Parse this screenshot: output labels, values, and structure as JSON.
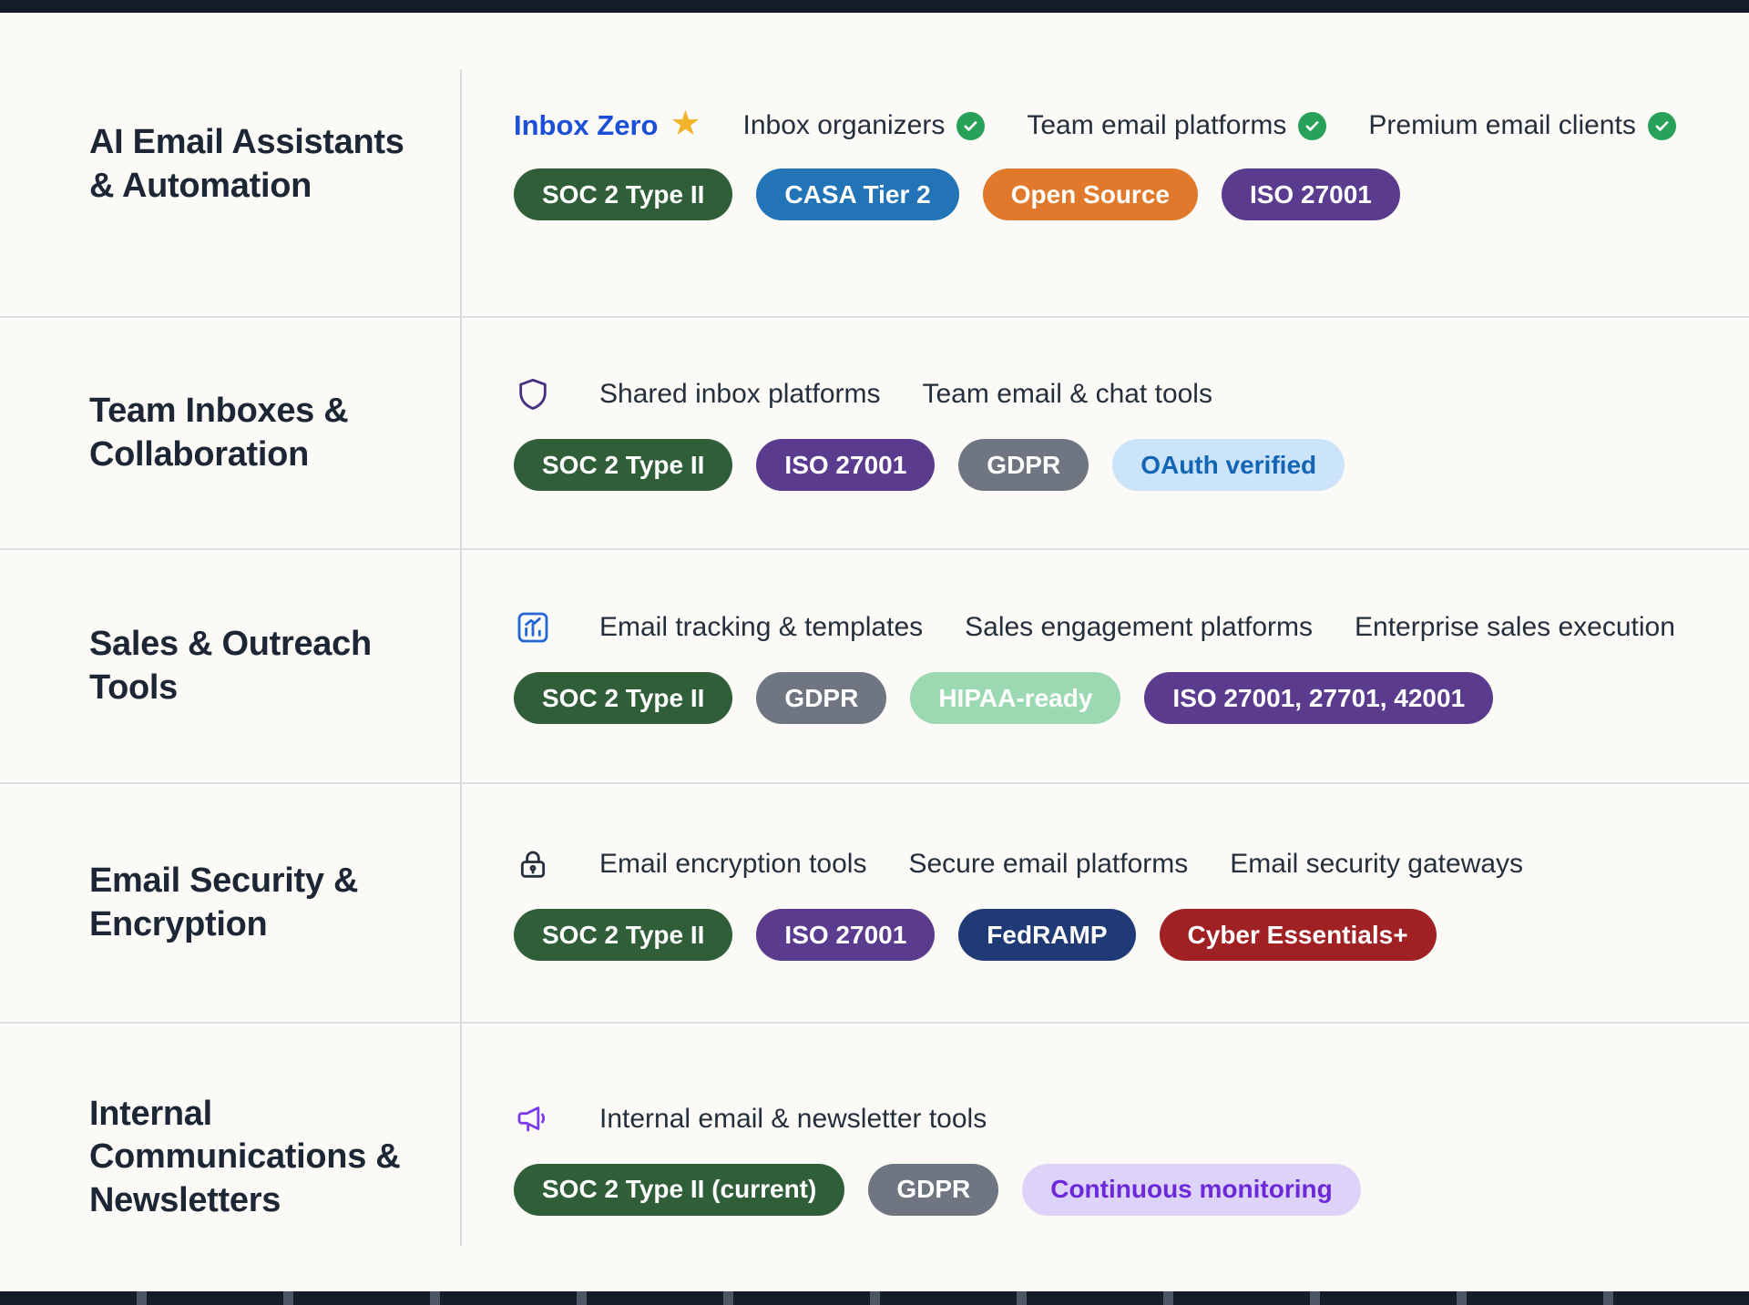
{
  "page": {
    "background": "#fbfaf6",
    "top_bar_color": "#171d28",
    "bottom_bar_color": "#171d28",
    "divider_color": "#d6dade"
  },
  "accents": {
    "featured_text": "#1b4fd8",
    "star": "#f1b32b",
    "check_bg": "#28a159",
    "check_mark": "#ffffff",
    "shield": "#47307f",
    "chart": "#2467d6",
    "lock": "#262f3e",
    "megaphone": "#7c3aed"
  },
  "rows": [
    {
      "title": "AI Email Assistants & Automation",
      "icon": null,
      "items": [
        {
          "label": "Inbox Zero",
          "style": "featured"
        },
        {
          "label": "Inbox organizers",
          "style": "check"
        },
        {
          "label": "Team email platforms",
          "style": "check"
        },
        {
          "label": "Premium email clients",
          "style": "check"
        }
      ],
      "badges": [
        {
          "label": "SOC 2 Type II",
          "bg": "#2f5e38",
          "fg": "#ffffff"
        },
        {
          "label": "CASA Tier 2",
          "bg": "#2274b6",
          "fg": "#ffffff"
        },
        {
          "label": "Open Source",
          "bg": "#e0792c",
          "fg": "#ffffff"
        },
        {
          "label": "ISO 27001",
          "bg": "#5a3b8e",
          "fg": "#ffffff"
        }
      ]
    },
    {
      "title": "Team Inboxes & Collaboration",
      "icon": "shield-icon",
      "items": [
        {
          "label": "Shared inbox platforms",
          "style": "plain"
        },
        {
          "label": "Team email & chat tools",
          "style": "plain"
        }
      ],
      "badges": [
        {
          "label": "SOC 2 Type II",
          "bg": "#2f5e38",
          "fg": "#ffffff"
        },
        {
          "label": "ISO 27001",
          "bg": "#5a3b8e",
          "fg": "#ffffff"
        },
        {
          "label": "GDPR",
          "bg": "#6f7681",
          "fg": "#ffffff"
        },
        {
          "label": "OAuth verified",
          "bg": "#cbe4f9",
          "fg": "#1565b5"
        }
      ]
    },
    {
      "title": "Sales & Outreach Tools",
      "icon": "chart-icon",
      "items": [
        {
          "label": "Email tracking & templates",
          "style": "plain"
        },
        {
          "label": "Sales engagement platforms",
          "style": "plain"
        },
        {
          "label": "Enterprise sales execution",
          "style": "plain"
        }
      ],
      "badges": [
        {
          "label": "SOC 2 Type II",
          "bg": "#2f5e38",
          "fg": "#ffffff"
        },
        {
          "label": "GDPR",
          "bg": "#6f7681",
          "fg": "#ffffff"
        },
        {
          "label": "HIPAA-ready",
          "bg": "#9cd9b3",
          "fg": "#ffffff"
        },
        {
          "label": "ISO 27001, 27701, 42001",
          "bg": "#5a3b8e",
          "fg": "#ffffff"
        }
      ]
    },
    {
      "title": "Email Security & Encryption",
      "icon": "lock-icon",
      "items": [
        {
          "label": "Email encryption tools",
          "style": "plain"
        },
        {
          "label": "Secure email platforms",
          "style": "plain"
        },
        {
          "label": "Email security gateways",
          "style": "plain"
        }
      ],
      "badges": [
        {
          "label": "SOC 2 Type II",
          "bg": "#2f5e38",
          "fg": "#ffffff"
        },
        {
          "label": "ISO 27001",
          "bg": "#5a3b8e",
          "fg": "#ffffff"
        },
        {
          "label": "FedRAMP",
          "bg": "#1f3a75",
          "fg": "#ffffff"
        },
        {
          "label": "Cyber Essentials+",
          "bg": "#9f2124",
          "fg": "#ffffff"
        }
      ]
    },
    {
      "title": "Internal Communications & Newsletters",
      "icon": "megaphone-icon",
      "items": [
        {
          "label": "Internal email & newsletter tools",
          "style": "plain"
        }
      ],
      "badges": [
        {
          "label": "SOC 2 Type II (current)",
          "bg": "#2f5e38",
          "fg": "#ffffff"
        },
        {
          "label": "GDPR",
          "bg": "#6f7681",
          "fg": "#ffffff"
        },
        {
          "label": "Continuous monitoring",
          "bg": "#ddd3f8",
          "fg": "#6d28d9"
        }
      ]
    }
  ]
}
